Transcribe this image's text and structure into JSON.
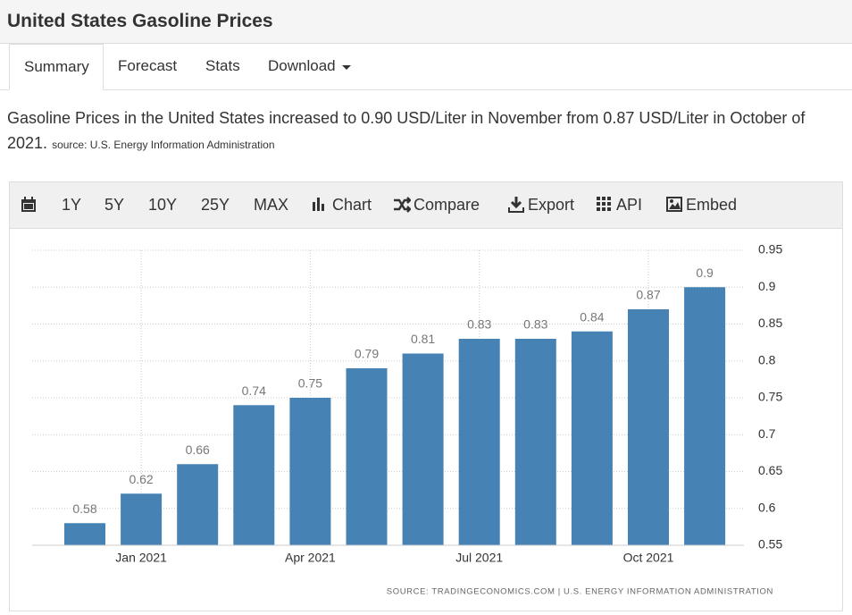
{
  "header": {
    "title": "United States Gasoline Prices"
  },
  "tabs": [
    "Summary",
    "Forecast",
    "Stats",
    "Download"
  ],
  "summary": {
    "text": "Gasoline Prices in the United States increased to 0.90 USD/Liter in November from 0.87 USD/Liter in October of 2021.",
    "source": "source: U.S. Energy Information Administration"
  },
  "toolbar": [
    "1Y",
    "5Y",
    "10Y",
    "25Y",
    "MAX",
    "Chart",
    "Compare",
    "Export",
    "API",
    "Embed"
  ],
  "chart_data": {
    "type": "bar",
    "categories": [
      null,
      "Jan 2021",
      null,
      null,
      "Apr 2021",
      null,
      null,
      "Jul 2021",
      null,
      null,
      "Oct 2021",
      null
    ],
    "values": [
      0.58,
      0.62,
      0.66,
      0.74,
      0.75,
      0.79,
      0.81,
      0.83,
      0.83,
      0.84,
      0.87,
      0.9
    ],
    "color": "#4682b4",
    "ylim": [
      0.55,
      0.95
    ],
    "yticks": [
      0.55,
      0.6,
      0.65,
      0.7,
      0.75,
      0.8,
      0.85,
      0.9,
      0.95
    ],
    "grid": true,
    "source": "SOURCE: TRADINGECONOMICS.COM | U.S. ENERGY INFORMATION ADMINISTRATION"
  }
}
